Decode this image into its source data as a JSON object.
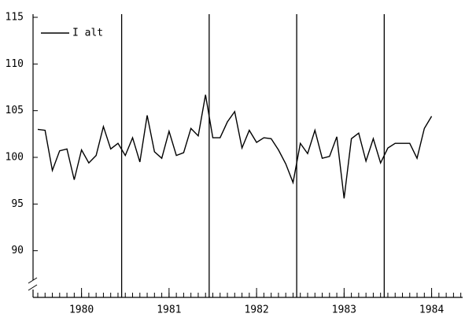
{
  "chart_data": {
    "type": "line",
    "categories": [
      null,
      null,
      null,
      null,
      null,
      null,
      "1980",
      null,
      null,
      null,
      null,
      null,
      null,
      null,
      null,
      null,
      null,
      null,
      "1981",
      null,
      null,
      null,
      null,
      null,
      null,
      null,
      null,
      null,
      null,
      null,
      "1982",
      null,
      null,
      null,
      null,
      null,
      null,
      null,
      null,
      null,
      null,
      null,
      "1983",
      null,
      null,
      null,
      null,
      null,
      null,
      null,
      null,
      null,
      null,
      null,
      "1984"
    ],
    "series": [
      {
        "name": "I alt",
        "color": "#000000",
        "values": [
          103,
          102.9,
          98.6,
          100.7,
          100.9,
          97.6,
          100.8,
          99.4,
          100.2,
          103.3,
          100.9,
          101.5,
          100.2,
          102.1,
          99.5,
          104.5,
          100.6,
          99.9,
          102.8,
          100.2,
          100.5,
          103.1,
          102.3,
          106.7,
          102.1,
          102.1,
          103.8,
          104.9,
          101,
          102.9,
          101.6,
          102.1,
          102,
          100.8,
          99.3,
          97.3,
          101.5,
          100.4,
          102.9,
          99.9,
          100.1,
          102.2,
          95.6,
          102,
          102.6,
          99.6,
          102,
          99.4,
          101,
          101.5,
          101.5,
          101.5,
          99.9,
          103.1,
          104.4
        ]
      }
    ],
    "ylim": [
      85,
      115
    ],
    "yticks": [
      90,
      95,
      100,
      105,
      110,
      115
    ],
    "legend": "upper left"
  }
}
